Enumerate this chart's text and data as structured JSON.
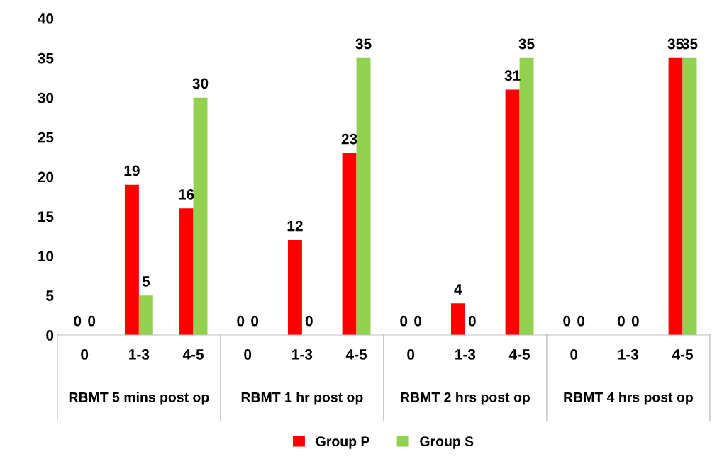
{
  "chart_data": {
    "type": "bar",
    "categories": [
      "0",
      "1-3",
      "4-5",
      "0",
      "1-3",
      "4-5",
      "0",
      "1-3",
      "4-5",
      "0",
      "1-3",
      "4-5"
    ],
    "series": [
      {
        "name": "Group P",
        "color": "#ff0000",
        "values": [
          0,
          19,
          16,
          0,
          12,
          23,
          0,
          4,
          31,
          0,
          0,
          35
        ]
      },
      {
        "name": "Group S",
        "color": "#92d050",
        "values": [
          0,
          5,
          30,
          0,
          0,
          35,
          0,
          0,
          35,
          0,
          0,
          35
        ]
      }
    ],
    "annotations": [
      "RBMT 5 mins post op",
      "RBMT 1 hr post op",
      "RBMT 2 hrs post op",
      "RBMT 4 hrs post op"
    ],
    "ylim": [
      0,
      40
    ],
    "yticks": [
      0,
      5,
      10,
      15,
      20,
      25,
      30,
      35,
      40
    ],
    "data_labels": true,
    "grid": false,
    "legend": "bottom"
  }
}
